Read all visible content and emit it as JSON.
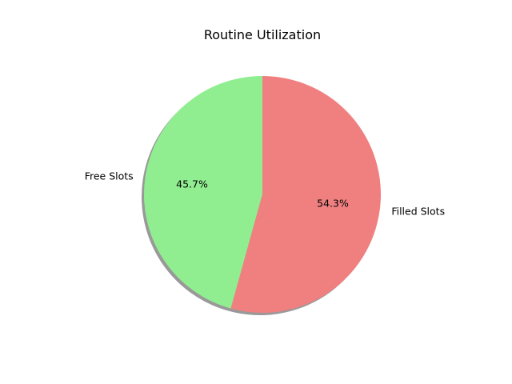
{
  "chart_data": {
    "type": "pie",
    "title": "Routine Utilization",
    "start_angle_deg": 90,
    "direction": "counterclockwise",
    "shadow": true,
    "slices": [
      {
        "label": "Free Slots",
        "value": 45.7,
        "pct_label": "45.7%",
        "color": "#90ee90"
      },
      {
        "label": "Filled Slots",
        "value": 54.3,
        "pct_label": "54.3%",
        "color": "#f08080"
      }
    ]
  }
}
